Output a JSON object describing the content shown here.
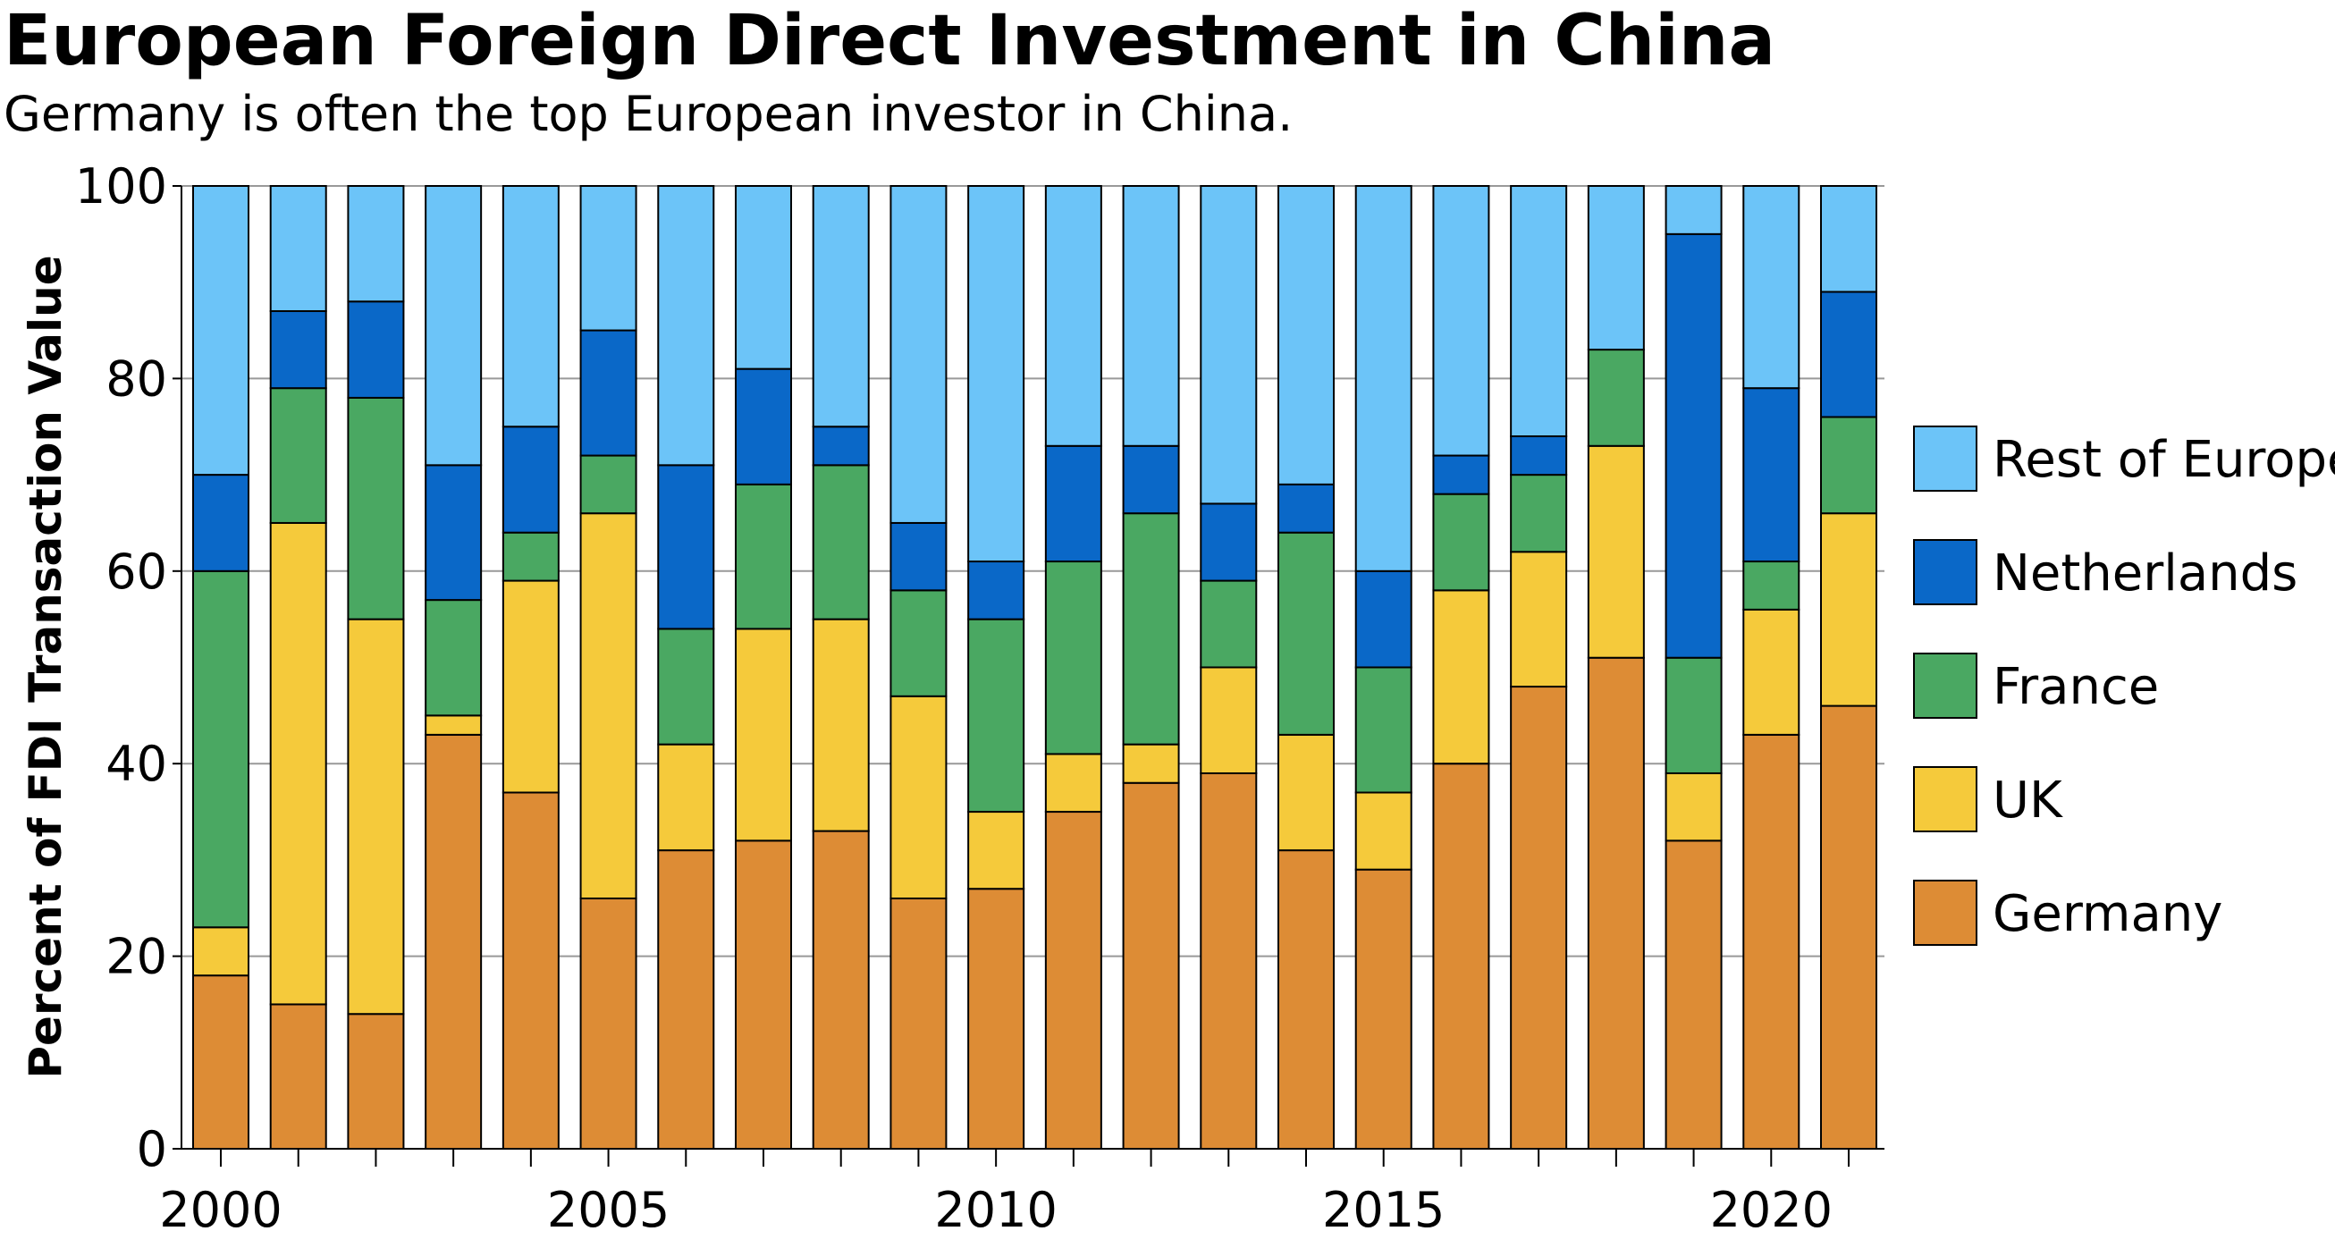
{
  "chart_data": {
    "type": "bar",
    "stacked": true,
    "title": "European Foreign Direct Investment in China",
    "subtitle": "Germany is often the top European investor in China.",
    "xlabel": "",
    "ylabel": "Percent of FDI Transaction Value",
    "ylim": [
      0,
      100
    ],
    "yticks": [
      0,
      20,
      40,
      60,
      80,
      100
    ],
    "xtick_labels": [
      "2000",
      "2005",
      "2010",
      "2015",
      "2020"
    ],
    "grid": true,
    "legend_placement": "right",
    "categories": [
      2000,
      2001,
      2002,
      2003,
      2004,
      2005,
      2006,
      2007,
      2008,
      2009,
      2010,
      2011,
      2012,
      2013,
      2014,
      2015,
      2016,
      2017,
      2018,
      2019,
      2020,
      2021
    ],
    "series": [
      {
        "name": "Germany",
        "color": "#dd8c35",
        "values": [
          18,
          15,
          14,
          43,
          37,
          26,
          31,
          32,
          33,
          26,
          27,
          35,
          38,
          39,
          31,
          29,
          40,
          48,
          51,
          32,
          43,
          46
        ]
      },
      {
        "name": "UK",
        "color": "#f5ca3b",
        "values": [
          5,
          50,
          41,
          2,
          22,
          40,
          11,
          22,
          22,
          21,
          8,
          6,
          4,
          11,
          12,
          8,
          18,
          14,
          22,
          7,
          13,
          20
        ]
      },
      {
        "name": "France",
        "color": "#4aa862",
        "values": [
          37,
          14,
          23,
          12,
          5,
          6,
          12,
          15,
          16,
          11,
          20,
          20,
          24,
          9,
          21,
          13,
          10,
          8,
          10,
          12,
          5,
          10
        ]
      },
      {
        "name": "Netherlands",
        "color": "#0a68c8",
        "values": [
          10,
          8,
          10,
          14,
          11,
          13,
          17,
          12,
          4,
          7,
          6,
          12,
          7,
          8,
          5,
          10,
          4,
          4,
          0,
          44,
          18,
          13
        ]
      },
      {
        "name": "Rest of Europe",
        "color": "#6cc4f8",
        "values": [
          30,
          13,
          12,
          29,
          25,
          15,
          29,
          19,
          25,
          35,
          39,
          27,
          27,
          33,
          31,
          40,
          28,
          26,
          17,
          5,
          21,
          11
        ]
      }
    ]
  }
}
